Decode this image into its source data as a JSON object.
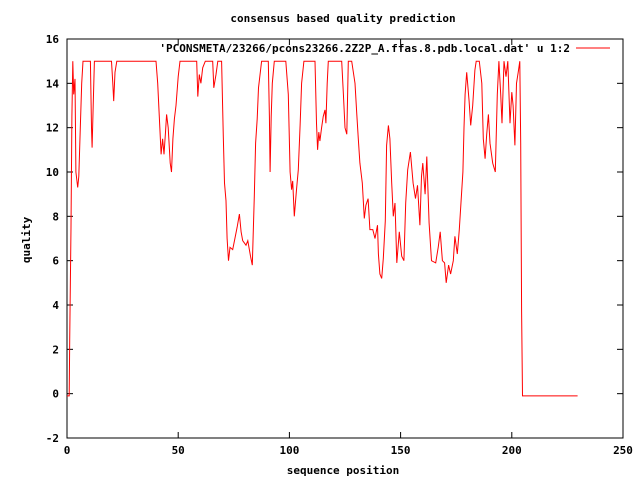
{
  "chart_data": {
    "type": "line",
    "title": "consensus based quality prediction",
    "xlabel": "sequence position",
    "ylabel": "quality",
    "xlim": [
      0,
      250
    ],
    "ylim": [
      -2,
      16
    ],
    "xticks": [
      0,
      50,
      100,
      150,
      200,
      250
    ],
    "yticks": [
      -2,
      0,
      2,
      4,
      6,
      8,
      10,
      12,
      14,
      16
    ],
    "grid": false,
    "legend_position": "top-right",
    "series": [
      {
        "name": "'PCONSMETA/23266/pcons23266.2Z2P_A.ffas.8.pdb.local.dat' u 1:2",
        "color": "#ff0000",
        "points": [
          [
            0,
            -0.1
          ],
          [
            1,
            -0.1
          ],
          [
            1.2,
            2.4
          ],
          [
            1.8,
            7.5
          ],
          [
            2.2,
            12.5
          ],
          [
            2.6,
            15
          ],
          [
            3,
            13.5
          ],
          [
            3.6,
            14.2
          ],
          [
            4,
            10
          ],
          [
            4.8,
            9.3
          ],
          [
            5.3,
            9.8
          ],
          [
            6,
            12
          ],
          [
            6.6,
            14
          ],
          [
            7.2,
            15
          ],
          [
            10.5,
            15
          ],
          [
            11,
            12
          ],
          [
            11.3,
            11.1
          ],
          [
            11.8,
            13
          ],
          [
            12.3,
            15
          ],
          [
            20,
            15
          ],
          [
            20.6,
            14
          ],
          [
            21,
            13.2
          ],
          [
            21.6,
            14.5
          ],
          [
            22.4,
            15
          ],
          [
            40,
            15
          ],
          [
            40.8,
            14
          ],
          [
            41.5,
            12.5
          ],
          [
            42.3,
            10.8
          ],
          [
            43,
            11.5
          ],
          [
            43.6,
            10.8
          ],
          [
            44.3,
            11.8
          ],
          [
            44.8,
            12.6
          ],
          [
            45.5,
            12
          ],
          [
            46.4,
            10.4
          ],
          [
            47,
            10
          ],
          [
            47.6,
            11.5
          ],
          [
            48.3,
            12.4
          ],
          [
            49,
            13
          ],
          [
            50,
            14.3
          ],
          [
            50.8,
            15
          ],
          [
            58.3,
            15
          ],
          [
            58.8,
            13.4
          ],
          [
            59.5,
            14.4
          ],
          [
            60.2,
            14
          ],
          [
            61,
            14.7
          ],
          [
            62.2,
            15
          ],
          [
            65.5,
            15
          ],
          [
            66,
            13.8
          ],
          [
            67,
            14.4
          ],
          [
            67.8,
            15
          ],
          [
            69.5,
            15
          ],
          [
            70.3,
            11.6
          ],
          [
            70.8,
            9.5
          ],
          [
            71.5,
            8.7
          ],
          [
            72,
            7
          ],
          [
            72.6,
            6
          ],
          [
            73.3,
            6.6
          ],
          [
            74.5,
            6.5
          ],
          [
            75.5,
            7
          ],
          [
            76.5,
            7.5
          ],
          [
            77.5,
            8.1
          ],
          [
            78.3,
            7.3
          ],
          [
            79,
            6.9
          ],
          [
            80.5,
            6.7
          ],
          [
            81.3,
            6.9
          ],
          [
            82.5,
            6.2
          ],
          [
            83.3,
            5.8
          ],
          [
            84.2,
            8.9
          ],
          [
            84.8,
            11.3
          ],
          [
            85.5,
            12.4
          ],
          [
            86.1,
            13.8
          ],
          [
            87.5,
            15
          ],
          [
            90.5,
            15
          ],
          [
            91,
            12.5
          ],
          [
            91.3,
            10
          ],
          [
            91.8,
            12.5
          ],
          [
            92.3,
            14
          ],
          [
            93.2,
            15
          ],
          [
            98.4,
            15
          ],
          [
            99.5,
            13.5
          ],
          [
            100.3,
            10
          ],
          [
            101,
            9.2
          ],
          [
            101.5,
            9.6
          ],
          [
            102.2,
            8
          ],
          [
            103.2,
            9.2
          ],
          [
            104,
            10.1
          ],
          [
            104.8,
            12.1
          ],
          [
            105.5,
            14
          ],
          [
            106.5,
            15
          ],
          [
            111.5,
            15
          ],
          [
            112.2,
            12.2
          ],
          [
            112.7,
            11
          ],
          [
            113.2,
            11.8
          ],
          [
            113.7,
            11.4
          ],
          [
            114.5,
            12
          ],
          [
            115.2,
            12.5
          ],
          [
            116,
            12.8
          ],
          [
            116.4,
            12.2
          ],
          [
            117,
            14
          ],
          [
            117.5,
            15
          ],
          [
            123.5,
            15
          ],
          [
            124.3,
            13.5
          ],
          [
            125,
            12
          ],
          [
            125.8,
            11.7
          ],
          [
            126.5,
            15
          ],
          [
            128,
            15
          ],
          [
            129.5,
            14
          ],
          [
            130.3,
            12.6
          ],
          [
            131,
            11.5
          ],
          [
            131.7,
            10.4
          ],
          [
            132.8,
            9.5
          ],
          [
            133.7,
            7.9
          ],
          [
            134.4,
            8.5
          ],
          [
            135.4,
            8.8
          ],
          [
            136.2,
            7.4
          ],
          [
            137.5,
            7.4
          ],
          [
            138.5,
            7
          ],
          [
            139.6,
            7.6
          ],
          [
            140,
            6.3
          ],
          [
            140.7,
            5.4
          ],
          [
            141.5,
            5.2
          ],
          [
            142.2,
            6.1
          ],
          [
            143.1,
            7.8
          ],
          [
            143.7,
            11.2
          ],
          [
            144.5,
            12.1
          ],
          [
            145.2,
            11.5
          ],
          [
            146,
            9.5
          ],
          [
            146.7,
            8
          ],
          [
            147.5,
            8.6
          ],
          [
            148.3,
            5.9
          ],
          [
            149.4,
            7.3
          ],
          [
            150.5,
            6.2
          ],
          [
            151.5,
            6
          ],
          [
            152.3,
            8.6
          ],
          [
            153.2,
            10.1
          ],
          [
            154.4,
            10.9
          ],
          [
            155.6,
            9.5
          ],
          [
            156.7,
            8.8
          ],
          [
            157.6,
            9.4
          ],
          [
            158.7,
            7.6
          ],
          [
            159.4,
            9.8
          ],
          [
            160,
            10.4
          ],
          [
            161,
            9
          ],
          [
            161.8,
            10.7
          ],
          [
            162.8,
            7.7
          ],
          [
            163.9,
            6
          ],
          [
            165.8,
            5.9
          ],
          [
            166.9,
            6.6
          ],
          [
            167.8,
            7.3
          ],
          [
            168.8,
            6
          ],
          [
            169.8,
            5.9
          ],
          [
            170.5,
            5
          ],
          [
            171.6,
            5.8
          ],
          [
            172.5,
            5.4
          ],
          [
            173.7,
            6
          ],
          [
            174.4,
            7.1
          ],
          [
            175.5,
            6.3
          ],
          [
            176.4,
            7.4
          ],
          [
            177.2,
            8.7
          ],
          [
            178,
            10
          ],
          [
            178.5,
            12
          ],
          [
            179,
            13.5
          ],
          [
            179.7,
            14.5
          ],
          [
            180.8,
            13.2
          ],
          [
            181.5,
            12.1
          ],
          [
            182.4,
            13
          ],
          [
            183.4,
            14.6
          ],
          [
            184,
            15
          ],
          [
            185.4,
            15
          ],
          [
            186.5,
            14
          ],
          [
            187.2,
            11.5
          ],
          [
            188,
            10.6
          ],
          [
            188.7,
            11.7
          ],
          [
            189.5,
            12.6
          ],
          [
            190.2,
            11.3
          ],
          [
            191.4,
            10.4
          ],
          [
            192.6,
            10
          ],
          [
            193.5,
            13.5
          ],
          [
            194.2,
            15
          ],
          [
            195,
            13.5
          ],
          [
            195.6,
            12.2
          ],
          [
            196.5,
            15
          ],
          [
            197.4,
            14.3
          ],
          [
            198.2,
            15
          ],
          [
            199.2,
            12.2
          ],
          [
            200,
            13.6
          ],
          [
            200.6,
            13
          ],
          [
            201.4,
            11.2
          ],
          [
            202.1,
            14
          ],
          [
            202.9,
            14.5
          ],
          [
            203.6,
            15
          ],
          [
            204,
            11.3
          ],
          [
            204.4,
            3.7
          ],
          [
            204.8,
            -0.1
          ],
          [
            229.6,
            -0.1
          ]
        ]
      }
    ]
  }
}
